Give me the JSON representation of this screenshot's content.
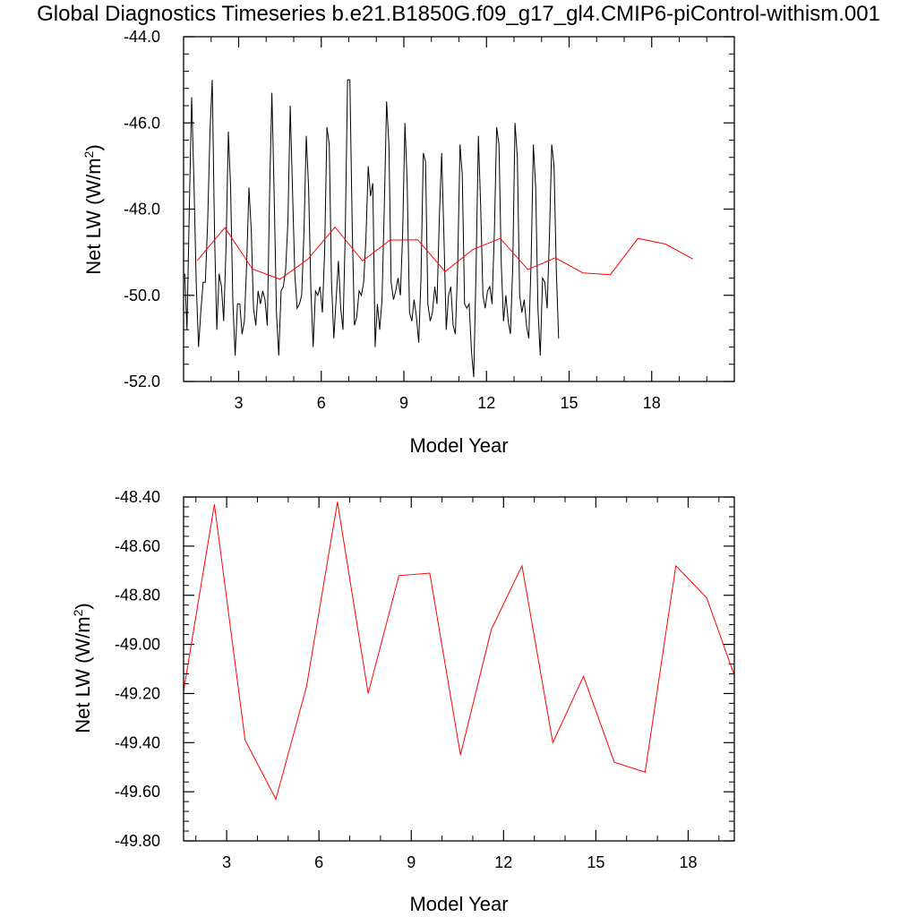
{
  "title": "Global Diagnostics Timeseries b.e21.B1850G.f09_g17_gl4.CMIP6-piControl-withism.001",
  "chart_data": [
    {
      "type": "line",
      "xlabel": "Model Year",
      "ylabel": "Net LW (W/m",
      "ylabel_sup": "2",
      "ylabel_close": ")",
      "xlim": [
        1.0,
        21.0
      ],
      "ylim": [
        -52.0,
        -44.0
      ],
      "xticks": [
        3,
        6,
        9,
        12,
        15,
        18
      ],
      "xtick_labels": [
        "3",
        "6",
        "9",
        "12",
        "15",
        "18"
      ],
      "yticks": [
        -52,
        -50,
        -48,
        -46,
        -44
      ],
      "ytick_labels": [
        "-52.0",
        "-50.0",
        "-48.0",
        "-46.0",
        "-44.0"
      ],
      "series": [
        {
          "color": "#000000",
          "x_start": 1.0417,
          "x_step": 0.0833,
          "values": [
            -49.5,
            -50.8,
            -48.0,
            -45.4,
            -47.3,
            -49.7,
            -51.2,
            -50.4,
            -49.7,
            -49.7,
            -48.3,
            -46.2,
            -45.0,
            -48.6,
            -50.8,
            -49.5,
            -49.8,
            -50.6,
            -48.9,
            -46.2,
            -47.5,
            -50.2,
            -51.4,
            -50.2,
            -50.2,
            -50.9,
            -50.6,
            -49.3,
            -47.5,
            -48.5,
            -50.3,
            -50.7,
            -49.9,
            -50.2,
            -49.9,
            -50.1,
            -50.7,
            -47.6,
            -45.3,
            -47.7,
            -50.4,
            -51.4,
            -49.9,
            -49.8,
            -49.4,
            -48.3,
            -45.6,
            -47.6,
            -49.5,
            -50.3,
            -50.2,
            -50.0,
            -48.5,
            -46.3,
            -47.5,
            -49.9,
            -51.2,
            -49.9,
            -50.0,
            -49.8,
            -50.4,
            -49.0,
            -46.1,
            -46.5,
            -49.7,
            -51.0,
            -50.1,
            -49.2,
            -50.3,
            -50.8,
            -48.5,
            -45.0,
            -45.0,
            -48.4,
            -50.7,
            -50.5,
            -49.9,
            -50.0,
            -49.7,
            -48.7,
            -47.0,
            -47.7,
            -47.4,
            -51.2,
            -50.2,
            -50.8,
            -50.1,
            -48.0,
            -45.5,
            -46.5,
            -49.7,
            -50.1,
            -49.9,
            -49.6,
            -50.0,
            -48.6,
            -46.0,
            -47.4,
            -50.4,
            -50.6,
            -50.1,
            -50.5,
            -51.1,
            -49.6,
            -46.7,
            -46.9,
            -50.2,
            -50.6,
            -50.4,
            -49.8,
            -50.2,
            -48.2,
            -46.7,
            -48.6,
            -50.8,
            -50.0,
            -49.8,
            -50.7,
            -50.9,
            -49.3,
            -46.5,
            -47.2,
            -50.2,
            -50.3,
            -50.2,
            -51.3,
            -51.9,
            -49.4,
            -46.3,
            -47.9,
            -50.0,
            -50.3,
            -49.9,
            -49.8,
            -50.2,
            -48.5,
            -46.1,
            -46.5,
            -49.3,
            -50.6,
            -50.0,
            -50.6,
            -50.9,
            -49.3,
            -46.0,
            -46.8,
            -50.0,
            -50.4,
            -50.1,
            -50.7,
            -51.0,
            -49.2,
            -46.5,
            -47.5,
            -50.3,
            -51.4,
            -49.6,
            -49.7,
            -50.3,
            -48.6,
            -46.5,
            -47.0,
            -49.4,
            -51.0
          ]
        },
        {
          "color": "#ff0000",
          "x_start": 1.5,
          "x_step": 1.0,
          "values": [
            -49.19,
            -48.43,
            -49.39,
            -49.63,
            -49.17,
            -48.42,
            -49.2,
            -48.72,
            -48.71,
            -49.45,
            -48.94,
            -48.68,
            -49.4,
            -49.13,
            -49.48,
            -49.52,
            -48.68,
            -48.81,
            -49.16
          ]
        }
      ]
    },
    {
      "type": "line",
      "xlabel": "Model Year",
      "ylabel": "Net LW (W/m",
      "ylabel_sup": "2",
      "ylabel_close": ")",
      "xlim": [
        1.6,
        19.5
      ],
      "ylim": [
        -49.8,
        -48.4
      ],
      "xticks": [
        3,
        6,
        9,
        12,
        15,
        18
      ],
      "xtick_labels": [
        "3",
        "6",
        "9",
        "12",
        "15",
        "18"
      ],
      "yticks": [
        -49.8,
        -49.6,
        -49.4,
        -49.2,
        -49.0,
        -48.8,
        -48.6,
        -48.4
      ],
      "ytick_labels": [
        "-49.80",
        "-49.60",
        "-49.40",
        "-49.20",
        "-49.00",
        "-48.80",
        "-48.60",
        "-48.40"
      ],
      "series": [
        {
          "color": "#ff0000",
          "x_start": 1.6,
          "x_step": 1.0,
          "values": [
            -49.19,
            -48.43,
            -49.39,
            -49.63,
            -49.17,
            -48.42,
            -49.2,
            -48.72,
            -48.71,
            -49.45,
            -48.94,
            -48.68,
            -49.4,
            -49.13,
            -49.48,
            -49.52,
            -48.68,
            -48.81,
            -49.16
          ]
        }
      ]
    }
  ]
}
